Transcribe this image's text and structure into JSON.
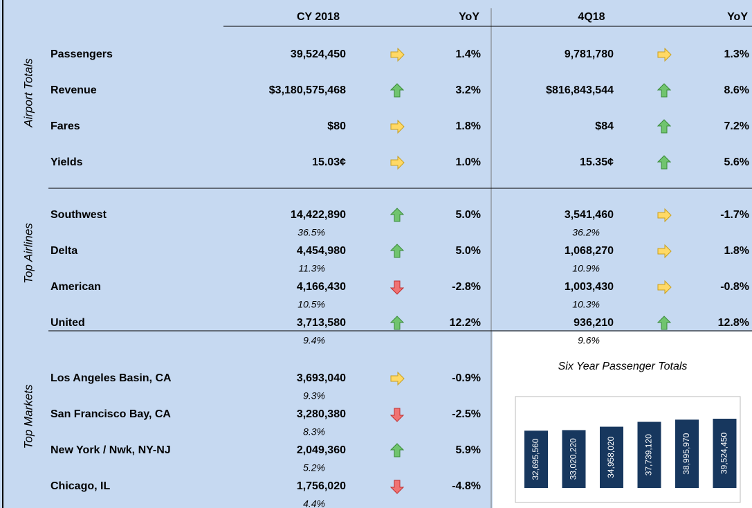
{
  "header": {
    "cy": "CY 2018",
    "cy_yoy": "YoY",
    "q": "4Q18",
    "q_yoy": "YoY"
  },
  "sections": [
    {
      "label": "Airport Totals",
      "rows": [
        {
          "name": "Passengers",
          "cy": "39,524,450",
          "cy_trend": "flat",
          "cy_yoy": "1.4%",
          "q": "9,781,780",
          "q_trend": "flat",
          "q_yoy": "1.3%"
        },
        {
          "name": "Revenue",
          "cy": "$3,180,575,468",
          "cy_trend": "up",
          "cy_yoy": "3.2%",
          "q": "$816,843,544",
          "q_trend": "up",
          "q_yoy": "8.6%"
        },
        {
          "name": "Fares",
          "cy": "$80",
          "cy_trend": "flat",
          "cy_yoy": "1.8%",
          "q": "$84",
          "q_trend": "up",
          "q_yoy": "7.2%"
        },
        {
          "name": "Yields",
          "cy": "15.03¢",
          "cy_trend": "flat",
          "cy_yoy": "1.0%",
          "q": "15.35¢",
          "q_trend": "up",
          "q_yoy": "5.6%"
        }
      ]
    },
    {
      "label": "Top Airlines",
      "rows": [
        {
          "name": "Southwest",
          "cy": "14,422,890",
          "cy_share": "36.5%",
          "cy_trend": "up",
          "cy_yoy": "5.0%",
          "q": "3,541,460",
          "q_share": "36.2%",
          "q_trend": "flat",
          "q_yoy": "-1.7%"
        },
        {
          "name": "Delta",
          "cy": "4,454,980",
          "cy_share": "11.3%",
          "cy_trend": "up",
          "cy_yoy": "5.0%",
          "q": "1,068,270",
          "q_share": "10.9%",
          "q_trend": "flat",
          "q_yoy": "1.8%"
        },
        {
          "name": "American",
          "cy": "4,166,430",
          "cy_share": "10.5%",
          "cy_trend": "down",
          "cy_yoy": "-2.8%",
          "q": "1,003,430",
          "q_share": "10.3%",
          "q_trend": "flat",
          "q_yoy": "-0.8%"
        },
        {
          "name": "United",
          "cy": "3,713,580",
          "cy_share": "9.4%",
          "cy_trend": "up",
          "cy_yoy": "12.2%",
          "q": "936,210",
          "q_share": "9.6%",
          "q_trend": "up",
          "q_yoy": "12.8%"
        }
      ]
    },
    {
      "label": "Top Markets",
      "rows": [
        {
          "name": "Los Angeles Basin, CA",
          "cy": "3,693,040",
          "cy_share": "9.3%",
          "cy_trend": "flat",
          "cy_yoy": "-0.9%"
        },
        {
          "name": "San Francisco Bay, CA",
          "cy": "3,280,380",
          "cy_share": "8.3%",
          "cy_trend": "down",
          "cy_yoy": "-2.5%"
        },
        {
          "name": "New York / Nwk, NY-NJ",
          "cy": "2,049,360",
          "cy_share": "5.2%",
          "cy_trend": "up",
          "cy_yoy": "5.9%"
        },
        {
          "name": "Chicago, IL",
          "cy": "1,756,020",
          "cy_share": "4.4%",
          "cy_trend": "down",
          "cy_yoy": "-4.8%"
        }
      ]
    }
  ],
  "chart": {
    "type": "bar",
    "title": "Six Year Passenger Totals",
    "color": "#17375e",
    "values": [
      32695560,
      33020220,
      34958020,
      37739120,
      38995970,
      39524450
    ],
    "value_labels": [
      "32,695,560",
      "33,020,220",
      "34,958,020",
      "37,739,120",
      "38,995,970",
      "39,524,450"
    ]
  }
}
